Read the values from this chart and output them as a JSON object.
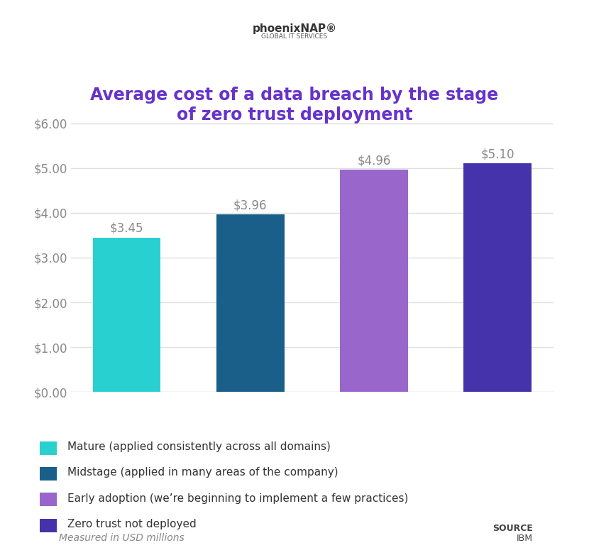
{
  "title_line1": "Average cost of a data breach by the stage",
  "title_line2": "of zero trust deployment",
  "title_color": "#6633cc",
  "categories": [
    "Mature",
    "Midstage",
    "Early adoption",
    "Zero trust not deployed"
  ],
  "values": [
    3.45,
    3.96,
    4.96,
    5.1
  ],
  "bar_colors": [
    "#29d0d0",
    "#1a5f8a",
    "#9966cc",
    "#4433aa"
  ],
  "value_labels": [
    "$3.45",
    "$3.96",
    "$4.96",
    "$5.10"
  ],
  "ylim": [
    0,
    6.5
  ],
  "yticks": [
    0.0,
    1.0,
    2.0,
    3.0,
    4.0,
    5.0,
    6.0
  ],
  "ytick_labels": [
    "$0.00",
    "$1.00",
    "$2.00",
    "$3.00",
    "$4.00",
    "$5.00",
    "$6.00"
  ],
  "legend_labels": [
    "Mature (applied consistently across all domains)",
    "Midstage (applied in many areas of the company)",
    "Early adoption (we’re beginning to implement a few practices)",
    "Zero trust not deployed"
  ],
  "legend_colors": [
    "#29d0d0",
    "#1a5f8a",
    "#9966cc",
    "#4433aa"
  ],
  "footnote": "Measured in USD millions",
  "source_label_top": "SOURCE",
  "source_label_bottom": "IBM",
  "background_color": "#ffffff",
  "grid_color": "#e0e0e0",
  "value_label_color": "#888888",
  "tick_label_color": "#888888"
}
